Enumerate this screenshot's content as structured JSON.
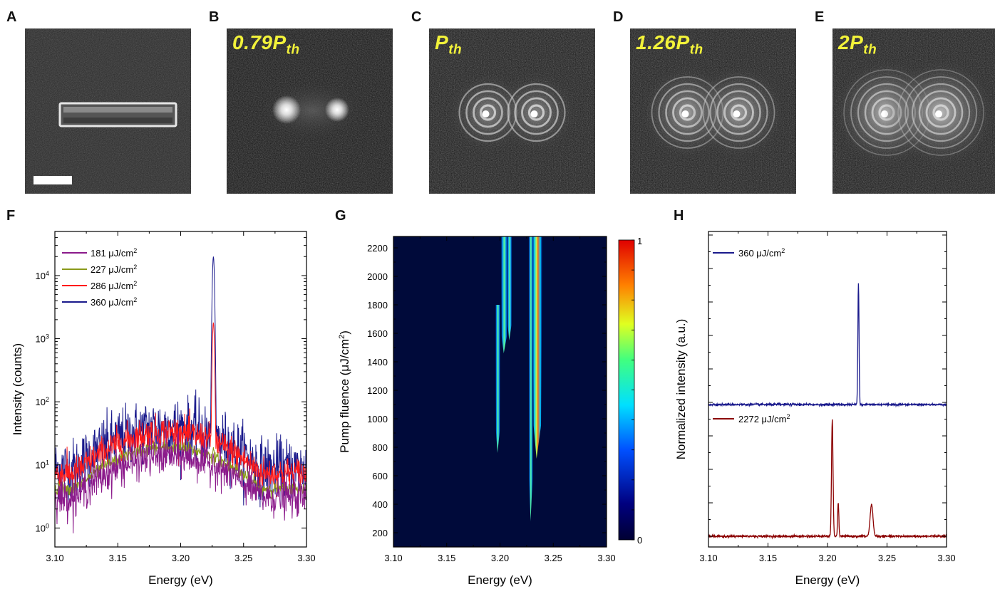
{
  "panels": {
    "A": {
      "label": "A"
    },
    "B": {
      "label": "B",
      "power_text": "0.79P",
      "power_sub": "th"
    },
    "C": {
      "label": "C",
      "power_text": "P",
      "power_sub": "th"
    },
    "D": {
      "label": "D",
      "power_text": "1.26P",
      "power_sub": "th"
    },
    "E": {
      "label": "E",
      "power_text": "2P",
      "power_sub": "th"
    },
    "F": {
      "label": "F"
    },
    "G": {
      "label": "G"
    },
    "H": {
      "label": "H"
    }
  },
  "colors": {
    "c181": "#8b1a8b",
    "c227": "#8a9a1a",
    "c286": "#ff1a1a",
    "c360": "#1a1a8c",
    "c2272": "#8b0000",
    "map_bg": "#000a3a"
  },
  "chart_data": [
    {
      "id": "F",
      "type": "line",
      "xlabel": "Energy (eV)",
      "ylabel": "Intensity (counts)",
      "xlim": [
        3.1,
        3.3
      ],
      "x_ticks": [
        "3.10",
        "3.15",
        "3.20",
        "3.25",
        "3.30"
      ],
      "y_scale": "log",
      "ylim": [
        0.5,
        50000
      ],
      "y_tick_labels": [
        {
          "base": "10",
          "exp": "0"
        },
        {
          "base": "10",
          "exp": "1"
        },
        {
          "base": "10",
          "exp": "2"
        },
        {
          "base": "10",
          "exp": "3"
        },
        {
          "base": "10",
          "exp": "4"
        }
      ],
      "legend_position": "top-left",
      "series": [
        {
          "name": "181 μJ/cm",
          "name_sup": "2",
          "color": "#8b1a8b",
          "background_peak": 14,
          "background_center": 3.19,
          "noise": 0.35,
          "peak_x": 3.226,
          "peak_y": 14
        },
        {
          "name": "227 μJ/cm",
          "name_sup": "2",
          "color": "#8a9a1a",
          "background_peak": 19,
          "background_center": 3.19,
          "noise": 0.12,
          "peak_x": 3.226,
          "peak_y": 19
        },
        {
          "name": "286 μJ/cm",
          "name_sup": "2",
          "color": "#ff1a1a",
          "background_peak": 33,
          "background_center": 3.19,
          "noise": 0.3,
          "peak_x": 3.226,
          "peak_y": 1800
        },
        {
          "name": "360 μJ/cm",
          "name_sup": "2",
          "color": "#1a1a8c",
          "background_peak": 40,
          "background_center": 3.19,
          "noise": 0.55,
          "peak_x": 3.226,
          "peak_y": 20000
        }
      ]
    },
    {
      "id": "G",
      "type": "heatmap",
      "xlabel": "Energy (eV)",
      "ylabel": "Pump fluence (μJ/cm",
      "ylabel_sup": "2",
      "ylabel_end": ")",
      "xlim": [
        3.1,
        3.3
      ],
      "ylim": [
        100,
        2280
      ],
      "x_ticks": [
        "3.10",
        "3.15",
        "3.20",
        "3.25",
        "3.30"
      ],
      "y_ticks": [
        "200",
        "400",
        "600",
        "800",
        "1000",
        "1200",
        "1400",
        "1600",
        "1800",
        "2000",
        "2200"
      ],
      "colorbar_ticks": [
        "0",
        "1"
      ],
      "colorbar_range": [
        0,
        1
      ],
      "modes": [
        {
          "x": 3.198,
          "y_start": 760,
          "y_end": 1800,
          "width": 0.0018,
          "intensity": 0.55
        },
        {
          "x": 3.204,
          "y_start": 1460,
          "y_end": 2280,
          "width": 0.0025,
          "intensity": 0.75
        },
        {
          "x": 3.209,
          "y_start": 1550,
          "y_end": 2280,
          "width": 0.0018,
          "intensity": 0.6
        },
        {
          "x": 3.229,
          "y_start": 280,
          "y_end": 2280,
          "width": 0.0016,
          "intensity": 0.8
        },
        {
          "x": 3.235,
          "y_start": 720,
          "y_end": 2280,
          "width": 0.0035,
          "intensity": 0.95
        }
      ]
    },
    {
      "id": "H",
      "type": "line",
      "xlabel": "Energy (eV)",
      "ylabel": "Normalized intensity (a.u.)",
      "xlim": [
        3.1,
        3.3
      ],
      "x_ticks": [
        "3.10",
        "3.15",
        "3.20",
        "3.25",
        "3.30"
      ],
      "legend_position": "inside-per-series",
      "series": [
        {
          "name": "360 μJ/cm",
          "name_sup": "2",
          "color": "#1a1a8c",
          "offset": 1.0,
          "peaks": [
            {
              "x": 3.226,
              "h": 0.92,
              "w": 0.0007
            }
          ]
        },
        {
          "name": "2272 μJ/cm",
          "name_sup": "2",
          "color": "#8b0000",
          "offset": 0.0,
          "peaks": [
            {
              "x": 3.204,
              "h": 0.88,
              "w": 0.0009
            },
            {
              "x": 3.209,
              "h": 0.26,
              "w": 0.0007
            },
            {
              "x": 3.237,
              "h": 0.24,
              "w": 0.0017
            }
          ]
        }
      ]
    }
  ]
}
